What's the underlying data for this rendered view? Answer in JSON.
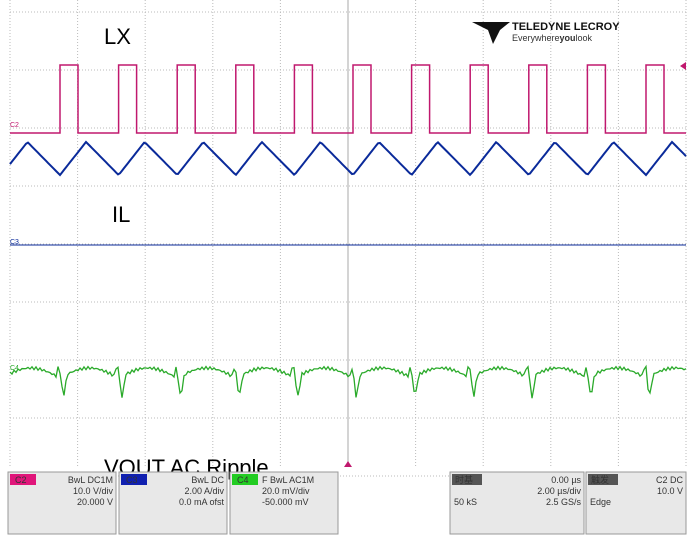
{
  "screen": {
    "labels": {
      "lx": "LX",
      "il": "IL",
      "vout": "VOUT AC Ripple"
    },
    "logo": {
      "brand": "TELEDYNE LECROY",
      "tag_a": "Everywhere",
      "tag_b": "you",
      "tag_c": "look"
    },
    "markers": {
      "c2": "C2",
      "c3": "C3",
      "c4": "C4"
    },
    "channels": [
      {
        "name": "C2",
        "coupling": "BwL DC1M",
        "scale": "10.0 V/div",
        "offset": "20.000 V"
      },
      {
        "name": "C3",
        "coupling": "BwL DC",
        "scale": "2.00 A/div",
        "offset": "0.0 mA ofst"
      },
      {
        "name": "C4",
        "coupling": "F BwL AC1M",
        "scale": "20.0 mV/div",
        "offset": "-50.000 mV"
      }
    ],
    "timebase": {
      "title": "时基",
      "delay": "0.00 µs",
      "scale": "2.00 µs/div",
      "samples": "50 kS",
      "rate": "2.5 GS/s"
    },
    "trigger": {
      "title": "触发",
      "source": "C2 DC",
      "level": "10.0 V",
      "mode": "Edge"
    }
  }
}
